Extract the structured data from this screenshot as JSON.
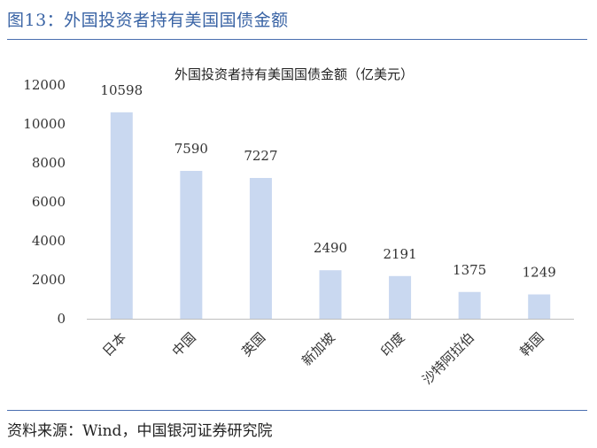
{
  "figure": {
    "title": "图13：外国投资者持有美国国债金额",
    "source": "资料来源：Wind，中国银河证券研究院"
  },
  "colors": {
    "bar": "#c9d8f0",
    "accent": "#3a64a5",
    "axis": "#bfbfbf"
  },
  "chart_data": {
    "type": "bar",
    "title": "外国投资者持有美国国债金额（亿美元）",
    "categories": [
      "日本",
      "中国",
      "英国",
      "新加坡",
      "印度",
      "沙特阿拉伯",
      "韩国"
    ],
    "values": [
      10598,
      7590,
      7227,
      2490,
      2191,
      1375,
      1249
    ],
    "data_labels": [
      "10598",
      "7590",
      "7227",
      "2490",
      "2191",
      "1375",
      "1249"
    ],
    "ylim": [
      0,
      12000
    ],
    "yticks": [
      0,
      2000,
      4000,
      6000,
      8000,
      10000,
      12000
    ],
    "ytick_labels": [
      "0",
      "2000",
      "4000",
      "6000",
      "8000",
      "10000",
      "12000"
    ],
    "xlabel": "",
    "ylabel": "",
    "grid": false,
    "legend": "none"
  }
}
